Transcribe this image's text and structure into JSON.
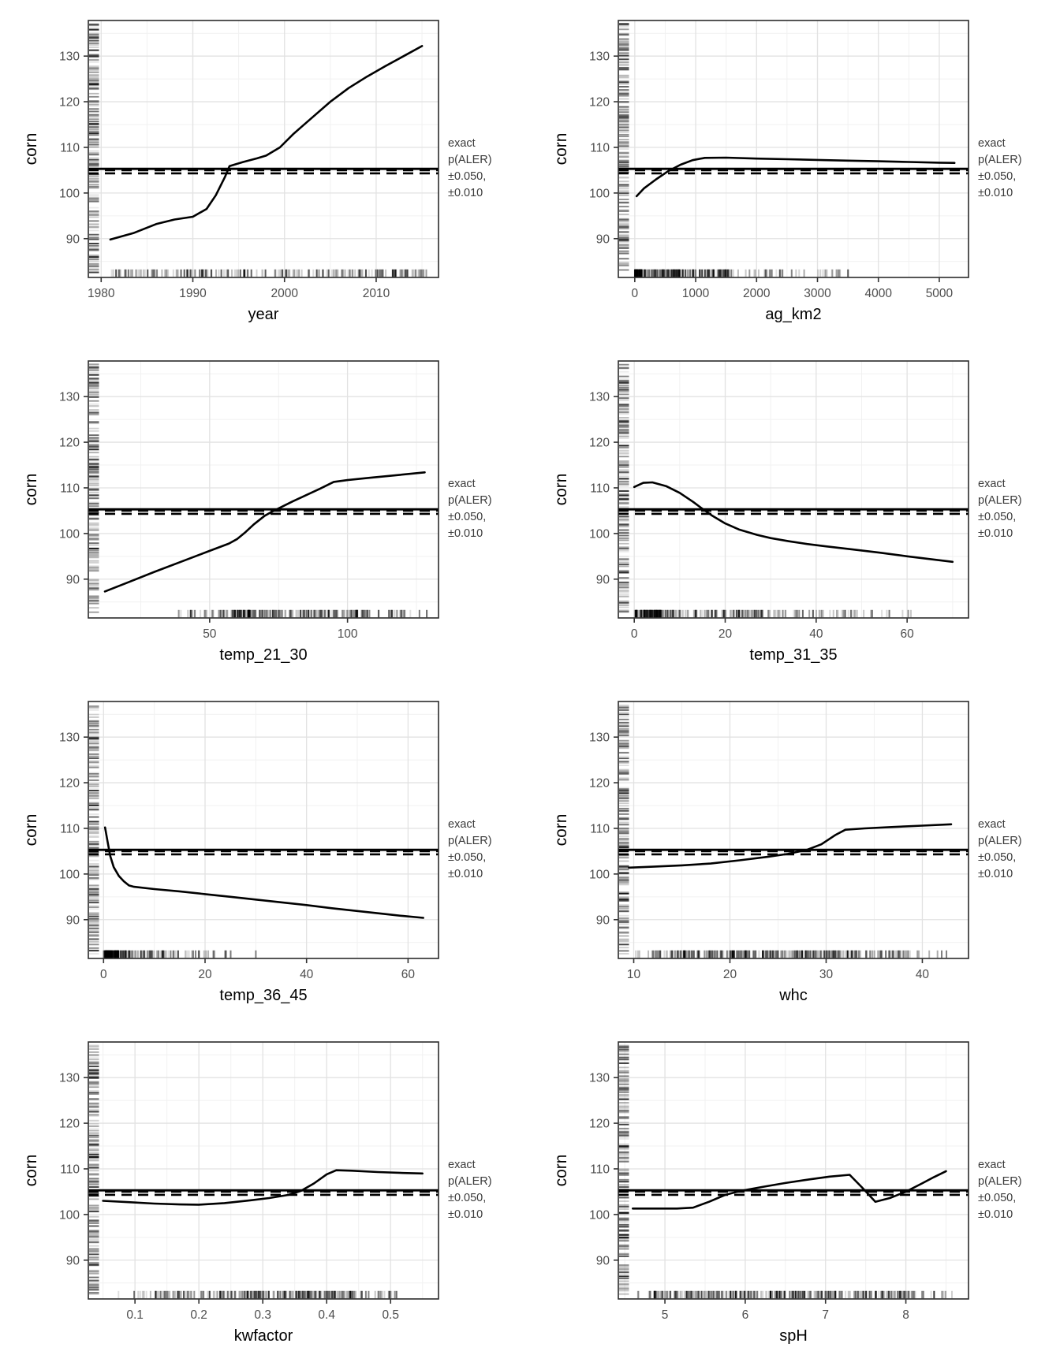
{
  "annotation": {
    "lines": [
      "exact",
      "p(ALER)",
      "±0.050,",
      "±0.010"
    ],
    "color": "#3a3a3a"
  },
  "style": {
    "background": "#ffffff",
    "line": "#000000",
    "ref_line": "#000000",
    "grid_major": "#e2e2e2",
    "grid_minor": "#f1f1f1",
    "panel_border": "#2b2b2b",
    "tick_mark": "#333333",
    "tick_label": "#4d4d4d",
    "axis_title": "#000000",
    "rug": "#000000"
  },
  "chart_data": [
    {
      "type": "line",
      "xlabel": "year",
      "ylabel": "corn",
      "xlim": [
        1978.6,
        2016.8
      ],
      "ylim": [
        81.5,
        137.8
      ],
      "xticks": [
        1980,
        1990,
        2000,
        2010
      ],
      "xtick_labels": [
        "1980",
        "1990",
        "2000",
        "2010"
      ],
      "yticks": [
        90,
        100,
        110,
        120,
        130
      ],
      "ytick_labels": [
        "90",
        "100",
        "110",
        "120",
        "130"
      ],
      "ref_lines": {
        "solid": 105.3,
        "dashed": [
          105.0,
          104.3
        ]
      },
      "line": [
        [
          1981,
          89.8
        ],
        [
          1983.5,
          91.2
        ],
        [
          1986,
          93.2
        ],
        [
          1988,
          94.2
        ],
        [
          1990,
          94.8
        ],
        [
          1991.5,
          96.5
        ],
        [
          1992.5,
          99.5
        ],
        [
          1993.5,
          103.5
        ],
        [
          1994,
          105.9
        ],
        [
          1995.5,
          106.8
        ],
        [
          1997,
          107.6
        ],
        [
          1998,
          108.2
        ],
        [
          1999.5,
          110
        ],
        [
          2001,
          113
        ],
        [
          2003,
          116.5
        ],
        [
          2005,
          120
        ],
        [
          2007,
          123
        ],
        [
          2009,
          125.5
        ],
        [
          2011,
          127.8
        ],
        [
          2013,
          130
        ],
        [
          2015,
          132.2
        ]
      ],
      "x_rug_segments": [
        {
          "range": [
            1981,
            2016
          ],
          "n": 190
        }
      ],
      "y_rug_segments": [
        {
          "range": [
            82.5,
            137.2
          ],
          "n": 210
        }
      ]
    },
    {
      "type": "line",
      "xlabel": "ag_km2",
      "ylabel": "corn",
      "xlim": [
        -270,
        5480
      ],
      "ylim": [
        81.5,
        137.8
      ],
      "xticks": [
        0,
        1000,
        2000,
        3000,
        4000,
        5000
      ],
      "xtick_labels": [
        "0",
        "1000",
        "2000",
        "3000",
        "4000",
        "5000"
      ],
      "yticks": [
        90,
        100,
        110,
        120,
        130
      ],
      "ytick_labels": [
        "90",
        "100",
        "110",
        "120",
        "130"
      ],
      "ref_lines": {
        "solid": 105.3,
        "dashed": [
          105.0,
          104.3
        ]
      },
      "line": [
        [
          30,
          99.3
        ],
        [
          150,
          101
        ],
        [
          350,
          103
        ],
        [
          550,
          104.8
        ],
        [
          750,
          106.2
        ],
        [
          950,
          107.2
        ],
        [
          1150,
          107.7
        ],
        [
          1500,
          107.75
        ],
        [
          2000,
          107.55
        ],
        [
          2500,
          107.4
        ],
        [
          3000,
          107.25
        ],
        [
          3500,
          107.1
        ],
        [
          4000,
          106.95
        ],
        [
          4500,
          106.8
        ],
        [
          5000,
          106.65
        ],
        [
          5250,
          106.6
        ]
      ],
      "x_rug_segments": [
        {
          "range": [
            0,
            120
          ],
          "n": 90
        },
        {
          "range": [
            120,
            800
          ],
          "n": 100
        },
        {
          "range": [
            800,
            1600
          ],
          "n": 60
        },
        {
          "range": [
            1600,
            2600
          ],
          "n": 22
        },
        {
          "range": [
            2600,
            3600
          ],
          "n": 18
        }
      ],
      "y_rug_segments": [
        {
          "range": [
            82.5,
            137.2
          ],
          "n": 210
        }
      ]
    },
    {
      "type": "line",
      "xlabel": "temp_21_30",
      "ylabel": "corn",
      "xlim": [
        6,
        133
      ],
      "ylim": [
        81.5,
        137.8
      ],
      "xticks": [
        50,
        100
      ],
      "xtick_labels": [
        "50",
        "100"
      ],
      "yticks": [
        90,
        100,
        110,
        120,
        130
      ],
      "ytick_labels": [
        "90",
        "100",
        "110",
        "120",
        "130"
      ],
      "ref_lines": {
        "solid": 105.3,
        "dashed": [
          105.0,
          104.3
        ]
      },
      "line": [
        [
          12,
          87.3
        ],
        [
          20,
          89.2
        ],
        [
          30,
          91.6
        ],
        [
          40,
          93.9
        ],
        [
          50,
          96.2
        ],
        [
          57,
          97.8
        ],
        [
          60,
          98.8
        ],
        [
          63,
          100.3
        ],
        [
          66,
          102
        ],
        [
          70,
          103.9
        ],
        [
          73,
          104.9
        ],
        [
          76,
          105.8
        ],
        [
          80,
          107
        ],
        [
          85,
          108.4
        ],
        [
          90,
          109.8
        ],
        [
          95,
          111.3
        ],
        [
          100,
          111.7
        ],
        [
          108,
          112.2
        ],
        [
          118,
          112.8
        ],
        [
          128,
          113.4
        ]
      ],
      "x_rug_segments": [
        {
          "range": [
            38,
            55
          ],
          "n": 25
        },
        {
          "range": [
            55,
            108
          ],
          "n": 170
        },
        {
          "range": [
            108,
            123
          ],
          "n": 22
        },
        {
          "range": [
            126,
            129
          ],
          "n": 2
        }
      ],
      "y_rug_segments": [
        {
          "range": [
            82.5,
            137.2
          ],
          "n": 210
        }
      ]
    },
    {
      "type": "line",
      "xlabel": "temp_31_35",
      "ylabel": "corn",
      "xlim": [
        -3.5,
        73.5
      ],
      "ylim": [
        81.5,
        137.8
      ],
      "xticks": [
        0,
        20,
        40,
        60
      ],
      "xtick_labels": [
        "0",
        "20",
        "40",
        "60"
      ],
      "yticks": [
        90,
        100,
        110,
        120,
        130
      ],
      "ytick_labels": [
        "90",
        "100",
        "110",
        "120",
        "130"
      ],
      "ref_lines": {
        "solid": 105.3,
        "dashed": [
          105.0,
          104.3
        ]
      },
      "line": [
        [
          0,
          110.2
        ],
        [
          2,
          111.1
        ],
        [
          4,
          111.2
        ],
        [
          7,
          110.4
        ],
        [
          10,
          108.9
        ],
        [
          13,
          106.9
        ],
        [
          15,
          105.4
        ],
        [
          17,
          104
        ],
        [
          20,
          102.2
        ],
        [
          23,
          100.9
        ],
        [
          27,
          99.7
        ],
        [
          30,
          99
        ],
        [
          34,
          98.3
        ],
        [
          38,
          97.7
        ],
        [
          42,
          97.2
        ],
        [
          48,
          96.5
        ],
        [
          54,
          95.8
        ],
        [
          60,
          95
        ],
        [
          65,
          94.4
        ],
        [
          70,
          93.8
        ]
      ],
      "x_rug_segments": [
        {
          "range": [
            0,
            6
          ],
          "n": 110
        },
        {
          "range": [
            6,
            30
          ],
          "n": 110
        },
        {
          "range": [
            30,
            50
          ],
          "n": 40
        },
        {
          "range": [
            50,
            63
          ],
          "n": 10
        }
      ],
      "y_rug_segments": [
        {
          "range": [
            82.5,
            137.2
          ],
          "n": 210
        }
      ]
    },
    {
      "type": "line",
      "xlabel": "temp_36_45",
      "ylabel": "corn",
      "xlim": [
        -3,
        66
      ],
      "ylim": [
        81.5,
        137.8
      ],
      "xticks": [
        0,
        20,
        40,
        60
      ],
      "xtick_labels": [
        "0",
        "20",
        "40",
        "60"
      ],
      "yticks": [
        90,
        100,
        110,
        120,
        130
      ],
      "ytick_labels": [
        "90",
        "100",
        "110",
        "120",
        "130"
      ],
      "ref_lines": {
        "solid": 105.3,
        "dashed": [
          105.0,
          104.3
        ]
      },
      "line": [
        [
          0.3,
          110.2
        ],
        [
          0.8,
          107
        ],
        [
          1.3,
          104
        ],
        [
          2,
          101.5
        ],
        [
          3,
          99.6
        ],
        [
          4,
          98.4
        ],
        [
          5,
          97.5
        ],
        [
          6,
          97.2
        ],
        [
          10,
          96.7
        ],
        [
          15,
          96.2
        ],
        [
          20,
          95.6
        ],
        [
          25,
          95
        ],
        [
          30,
          94.4
        ],
        [
          35,
          93.8
        ],
        [
          40,
          93.2
        ],
        [
          45,
          92.5
        ],
        [
          50,
          91.9
        ],
        [
          55,
          91.3
        ],
        [
          59,
          90.8
        ],
        [
          63,
          90.4
        ]
      ],
      "x_rug_segments": [
        {
          "range": [
            0,
            3
          ],
          "n": 120
        },
        {
          "range": [
            3,
            12
          ],
          "n": 60
        },
        {
          "range": [
            12,
            26
          ],
          "n": 28
        },
        {
          "range": [
            29,
            31
          ],
          "n": 2
        }
      ],
      "y_rug_segments": [
        {
          "range": [
            82.5,
            137.2
          ],
          "n": 210
        }
      ]
    },
    {
      "type": "line",
      "xlabel": "whc",
      "ylabel": "corn",
      "xlim": [
        8.4,
        44.8
      ],
      "ylim": [
        81.5,
        137.8
      ],
      "xticks": [
        10,
        20,
        30,
        40
      ],
      "xtick_labels": [
        "10",
        "20",
        "30",
        "40"
      ],
      "yticks": [
        90,
        100,
        110,
        120,
        130
      ],
      "ytick_labels": [
        "90",
        "100",
        "110",
        "120",
        "130"
      ],
      "ref_lines": {
        "solid": 105.3,
        "dashed": [
          105.0,
          104.3
        ]
      },
      "line": [
        [
          9.5,
          101.4
        ],
        [
          12,
          101.6
        ],
        [
          15,
          101.9
        ],
        [
          18,
          102.3
        ],
        [
          21,
          103
        ],
        [
          24,
          103.8
        ],
        [
          26,
          104.4
        ],
        [
          28,
          105.3
        ],
        [
          29.5,
          106.5
        ],
        [
          31,
          108.6
        ],
        [
          32,
          109.7
        ],
        [
          34,
          110
        ],
        [
          37,
          110.3
        ],
        [
          40,
          110.6
        ],
        [
          43,
          110.9
        ]
      ],
      "x_rug_segments": [
        {
          "range": [
            10,
            13
          ],
          "n": 18
        },
        {
          "range": [
            13,
            20
          ],
          "n": 70
        },
        {
          "range": [
            20,
            33
          ],
          "n": 160
        },
        {
          "range": [
            33,
            39
          ],
          "n": 45
        },
        {
          "range": [
            39,
            43
          ],
          "n": 6
        }
      ],
      "y_rug_segments": [
        {
          "range": [
            82.5,
            137.2
          ],
          "n": 210
        }
      ]
    },
    {
      "type": "line",
      "xlabel": "kwfactor",
      "ylabel": "corn",
      "xlim": [
        0.027,
        0.575
      ],
      "ylim": [
        81.5,
        137.8
      ],
      "xticks": [
        0.1,
        0.2,
        0.3,
        0.4,
        0.5
      ],
      "xtick_labels": [
        "0.1",
        "0.2",
        "0.3",
        "0.4",
        "0.5"
      ],
      "yticks": [
        90,
        100,
        110,
        120,
        130
      ],
      "ytick_labels": [
        "90",
        "100",
        "110",
        "120",
        "130"
      ],
      "ref_lines": {
        "solid": 105.3,
        "dashed": [
          105.0,
          104.3
        ]
      },
      "line": [
        [
          0.05,
          103
        ],
        [
          0.09,
          102.7
        ],
        [
          0.13,
          102.4
        ],
        [
          0.17,
          102.2
        ],
        [
          0.2,
          102.15
        ],
        [
          0.24,
          102.5
        ],
        [
          0.28,
          103.1
        ],
        [
          0.31,
          103.6
        ],
        [
          0.34,
          104.3
        ],
        [
          0.36,
          105.2
        ],
        [
          0.38,
          106.8
        ],
        [
          0.4,
          108.8
        ],
        [
          0.415,
          109.7
        ],
        [
          0.44,
          109.6
        ],
        [
          0.48,
          109.3
        ],
        [
          0.52,
          109.1
        ],
        [
          0.55,
          109
        ]
      ],
      "x_rug_segments": [
        {
          "range": [
            0.07,
            0.13
          ],
          "n": 8
        },
        {
          "range": [
            0.13,
            0.2
          ],
          "n": 35
        },
        {
          "range": [
            0.2,
            0.45
          ],
          "n": 180
        },
        {
          "range": [
            0.45,
            0.52
          ],
          "n": 20
        }
      ],
      "y_rug_segments": [
        {
          "range": [
            82.5,
            137.2
          ],
          "n": 210
        }
      ]
    },
    {
      "type": "line",
      "xlabel": "spH",
      "ylabel": "corn",
      "xlim": [
        4.42,
        8.78
      ],
      "ylim": [
        81.5,
        137.8
      ],
      "xticks": [
        5,
        6,
        7,
        8
      ],
      "xtick_labels": [
        "5",
        "6",
        "7",
        "8"
      ],
      "yticks": [
        90,
        100,
        110,
        120,
        130
      ],
      "ytick_labels": [
        "90",
        "100",
        "110",
        "120",
        "130"
      ],
      "ref_lines": {
        "solid": 105.3,
        "dashed": [
          105.0,
          104.3
        ]
      },
      "line": [
        [
          4.6,
          101.3
        ],
        [
          4.9,
          101.3
        ],
        [
          5.15,
          101.3
        ],
        [
          5.35,
          101.5
        ],
        [
          5.55,
          102.8
        ],
        [
          5.75,
          104.3
        ],
        [
          5.95,
          105.2
        ],
        [
          6.2,
          106
        ],
        [
          6.5,
          106.9
        ],
        [
          6.8,
          107.7
        ],
        [
          7.05,
          108.3
        ],
        [
          7.3,
          108.7
        ],
        [
          7.45,
          106
        ],
        [
          7.62,
          102.8
        ],
        [
          7.8,
          103.6
        ],
        [
          8,
          105
        ],
        [
          8.2,
          106.8
        ],
        [
          8.35,
          108.2
        ],
        [
          8.5,
          109.5
        ]
      ],
      "x_rug_segments": [
        {
          "range": [
            4.65,
            4.72
          ],
          "n": 2
        },
        {
          "range": [
            4.8,
            6.4
          ],
          "n": 150
        },
        {
          "range": [
            6.4,
            8.15
          ],
          "n": 140
        },
        {
          "range": [
            8.2,
            8.6
          ],
          "n": 10
        }
      ],
      "y_rug_segments": [
        {
          "range": [
            82.5,
            137.2
          ],
          "n": 210
        }
      ]
    }
  ]
}
